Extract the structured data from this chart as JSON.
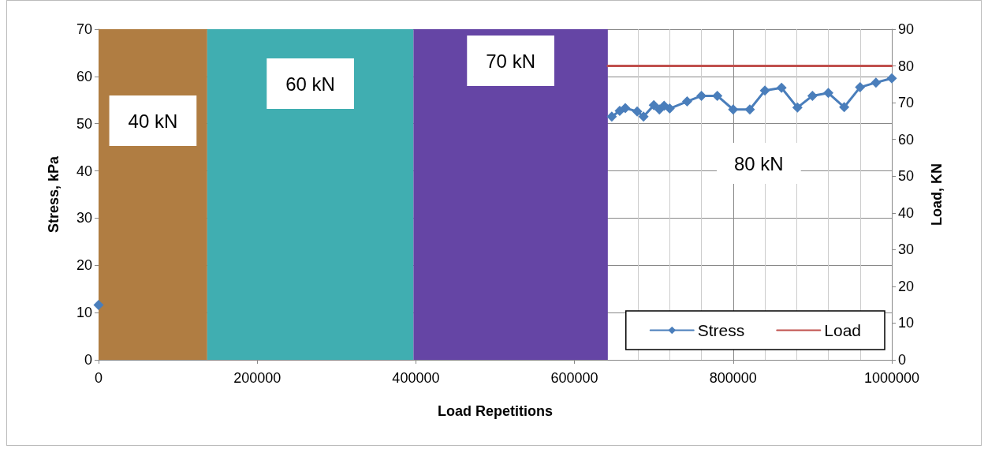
{
  "chart_data": {
    "type": "line",
    "xlabel": "Load Repetitions",
    "ylabel": "Stress, kPa",
    "y2label": "Load, KN",
    "xlim": [
      0,
      1000000
    ],
    "xticks": [
      0,
      200000,
      400000,
      600000,
      800000,
      1000000
    ],
    "ylim": [
      0,
      70
    ],
    "yticks": [
      0,
      10,
      20,
      30,
      40,
      50,
      60,
      70
    ],
    "y2lim": [
      0,
      90
    ],
    "y2ticks": [
      0,
      10,
      20,
      30,
      40,
      50,
      60,
      70,
      80,
      90
    ],
    "grid": true,
    "legend": "bottom right",
    "series": [
      {
        "name": "Stress",
        "color": "#4a7ebb",
        "marker": "diamond",
        "x": [
          0,
          320000,
          647000,
          657000,
          664000,
          679000,
          687000,
          700000,
          707000,
          713000,
          720000,
          742000,
          760000,
          780000,
          800000,
          821000,
          840000,
          861000,
          881000,
          900000,
          920000,
          940000,
          960000,
          980000,
          1000000
        ],
        "values": [
          11.6,
          null,
          51.5,
          52.7,
          53.3,
          52.6,
          51.5,
          53.9,
          53.0,
          53.8,
          53.2,
          54.7,
          55.9,
          55.9,
          53.0,
          53.0,
          57.0,
          57.6,
          53.4,
          55.9,
          56.5,
          53.5,
          57.7,
          58.7,
          59.6
        ]
      },
      {
        "name": "Load",
        "color": "#c0504d",
        "marker": "none",
        "axis": "y2",
        "x": [
          642000,
          1000000
        ],
        "values": [
          80,
          80
        ]
      }
    ],
    "bands": [
      {
        "axis": "x",
        "from": 0,
        "to": 137000,
        "label": "40 kN",
        "color": "#b07d42"
      },
      {
        "axis": "x",
        "from": 137000,
        "to": 397000,
        "label": "60 kN",
        "color": "#40aeb1"
      },
      {
        "axis": "x",
        "from": 397000,
        "to": 642000,
        "label": "70 kN",
        "color": "#6545a5"
      }
    ],
    "annotations": [
      "80 kN"
    ]
  }
}
